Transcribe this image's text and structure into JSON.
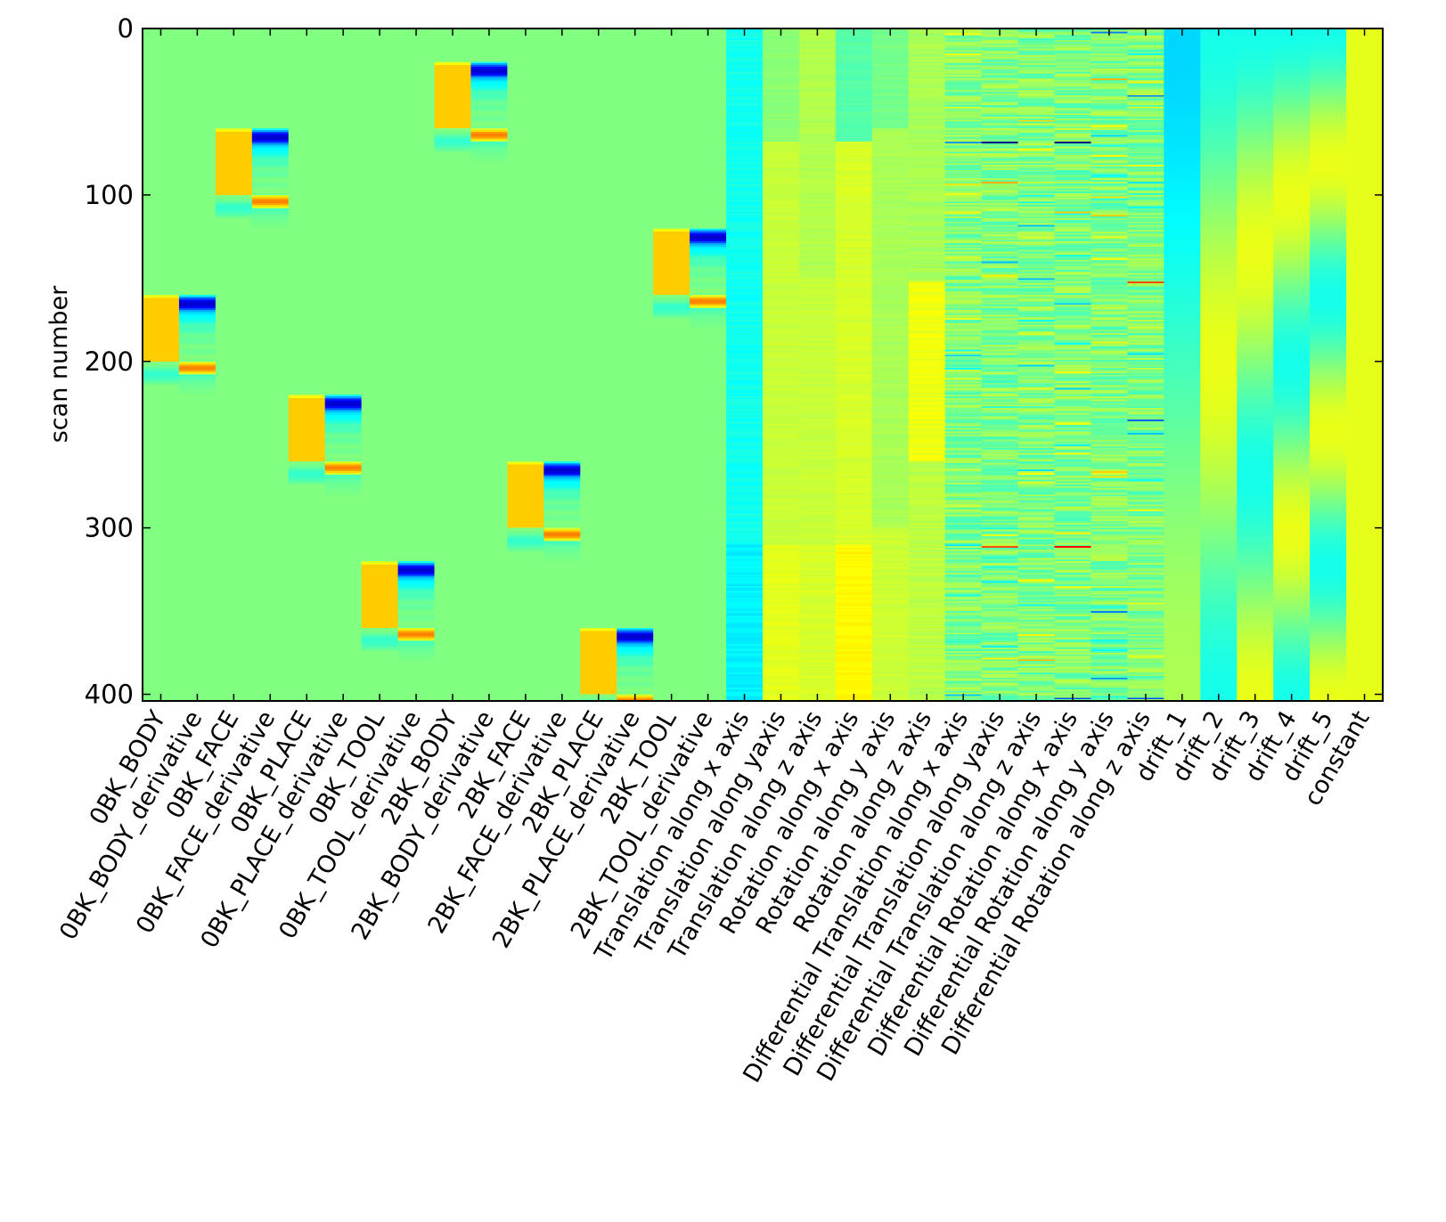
{
  "chart_data": {
    "type": "heatmap",
    "title": "",
    "xlabel": "",
    "ylabel": "scan number",
    "ylim": [
      404,
      0
    ],
    "n_scans": 404,
    "yticks": [
      0,
      100,
      200,
      300,
      400
    ],
    "ytick_labels": [
      "0",
      "100",
      "200",
      "300",
      "400"
    ],
    "colormap": "jet",
    "value_range": [
      -1,
      1
    ],
    "grid": false,
    "legend": "none",
    "columns": [
      "0BK_BODY",
      "0BK_BODY_derivative",
      "0BK_FACE",
      "0BK_FACE_derivative",
      "0BK_PLACE",
      "0BK_PLACE_derivative",
      "0BK_TOOL",
      "0BK_TOOL_derivative",
      "2BK_BODY",
      "2BK_BODY_derivative",
      "2BK_FACE",
      "2BK_FACE_derivative",
      "2BK_PLACE",
      "2BK_PLACE_derivative",
      "2BK_TOOL",
      "2BK_TOOL_derivative",
      "Translation along x axis",
      "Translation along yaxis",
      "Translation along z axis",
      "Rotation along x axis",
      "Rotation along y axis",
      "Rotation along z axis",
      "Differential Translation along x axis",
      "Differential Translation along yaxis",
      "Differential Translation along z axis",
      "Differential Rotation along x axis",
      "Differential Rotation along y axis",
      "Differential Rotation along z axis",
      "drift_1",
      "drift_2",
      "drift_3",
      "drift_4",
      "drift_5",
      "constant"
    ],
    "task_blocks": [
      {
        "condition": "0BK_BODY",
        "onset": 160
      },
      {
        "condition": "0BK_FACE",
        "onset": 60
      },
      {
        "condition": "0BK_PLACE",
        "onset": 220
      },
      {
        "condition": "0BK_TOOL",
        "onset": 320
      },
      {
        "condition": "2BK_BODY",
        "onset": 20
      },
      {
        "condition": "2BK_FACE",
        "onset": 260
      },
      {
        "condition": "2BK_PLACE",
        "onset": 360
      },
      {
        "condition": "2BK_TOOL",
        "onset": 120
      }
    ],
    "block_duration": 40,
    "baseline_value": 0,
    "block_peak_value": 0.35,
    "derivative_onset_value": -0.85,
    "derivative_offset_value": 0.5,
    "motion_columns": {
      "Translation along x axis": {
        "level": -0.22,
        "jumps": [
          [
            310,
            -0.27
          ]
        ],
        "noise": 0.03
      },
      "Translation along yaxis": {
        "level": 0.02,
        "jumps": [
          [
            68,
            0.14
          ],
          [
            310,
            0.2
          ]
        ],
        "noise": 0.02
      },
      "Translation along z axis": {
        "level": 0.1,
        "jumps": [
          [
            150,
            0.14
          ],
          [
            310,
            0.17
          ]
        ],
        "noise": 0.02
      },
      "Rotation along x axis": {
        "level": -0.08,
        "jumps": [
          [
            68,
            0.17
          ],
          [
            310,
            0.26
          ]
        ],
        "noise": 0.02
      },
      "Rotation along y axis": {
        "level": -0.02,
        "jumps": [
          [
            60,
            0.08
          ],
          [
            300,
            0.15
          ]
        ],
        "noise": 0.02
      },
      "Rotation along z axis": {
        "level": 0.08,
        "jumps": [
          [
            152,
            0.22
          ],
          [
            260,
            0.12
          ],
          [
            395,
            0.1
          ]
        ],
        "noise": 0.03
      }
    },
    "differential_columns": {
      "Differential Translation along x axis": {
        "noise": 0.12,
        "spikes": [
          [
            68,
            -0.45
          ],
          [
            310,
            -0.3
          ],
          [
            400,
            -0.35
          ]
        ]
      },
      "Differential Translation along yaxis": {
        "noise": 0.12,
        "spikes": [
          [
            68,
            -1.0
          ],
          [
            311,
            0.6
          ]
        ]
      },
      "Differential Translation along z axis": {
        "noise": 0.12,
        "spikes": [
          [
            150,
            -0.4
          ]
        ]
      },
      "Differential Rotation along x axis": {
        "noise": 0.12,
        "spikes": [
          [
            68,
            -1.0
          ],
          [
            311,
            0.75
          ],
          [
            402,
            -0.6
          ]
        ]
      },
      "Differential Rotation along y axis": {
        "noise": 0.12,
        "spikes": [
          [
            2,
            -0.5
          ],
          [
            30,
            0.4
          ],
          [
            350,
            -0.5
          ],
          [
            390,
            -0.5
          ]
        ]
      },
      "Differential Rotation along z axis": {
        "noise": 0.12,
        "spikes": [
          [
            40,
            -0.5
          ],
          [
            152,
            0.6
          ],
          [
            235,
            -0.55
          ],
          [
            402,
            -0.6
          ]
        ]
      }
    },
    "drift_columns": {
      "drift_1": {
        "cycles": 0.5,
        "amplitude": 0.38,
        "phase": 0
      },
      "drift_2": {
        "cycles": 1.0,
        "amplitude": 0.38,
        "phase": 0
      },
      "drift_3": {
        "cycles": 1.5,
        "amplitude": 0.38,
        "phase": 0
      },
      "drift_4": {
        "cycles": 2.0,
        "amplitude": 0.38,
        "phase": 0
      },
      "drift_5": {
        "cycles": 2.5,
        "amplitude": 0.38,
        "phase": 0
      }
    },
    "constant_value": 0.2
  }
}
